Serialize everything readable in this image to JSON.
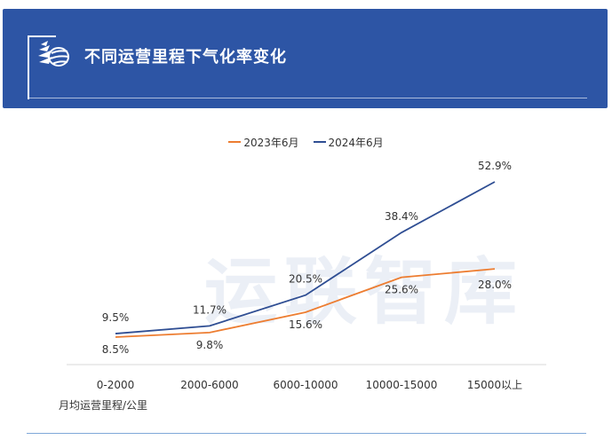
{
  "header": {
    "title": "不同运营里程下气化率变化",
    "watermark": "运联智库"
  },
  "colors": {
    "banner": "#2d55a5",
    "series_2023": "#ed7d31",
    "series_2024": "#2f4e93"
  },
  "chart_data": {
    "type": "line",
    "title": "不同运营里程下气化率变化",
    "xlabel": "月均运营里程/公里",
    "ylabel": "",
    "categories": [
      "0-2000",
      "2000-6000",
      "6000-10000",
      "10000-15000",
      "15000以上"
    ],
    "series": [
      {
        "name": "2023年6月",
        "values": [
          8.5,
          9.8,
          15.6,
          25.6,
          28.0
        ],
        "labels": [
          "8.5%",
          "9.8%",
          "15.6%",
          "25.6%",
          "28.0%"
        ]
      },
      {
        "name": "2024年6月",
        "values": [
          9.5,
          11.7,
          20.5,
          38.4,
          52.9
        ],
        "labels": [
          "9.5%",
          "11.7%",
          "20.5%",
          "38.4%",
          "52.9%"
        ]
      }
    ],
    "ylim": [
      0,
      60
    ],
    "grid": false,
    "legend": "top-center"
  }
}
